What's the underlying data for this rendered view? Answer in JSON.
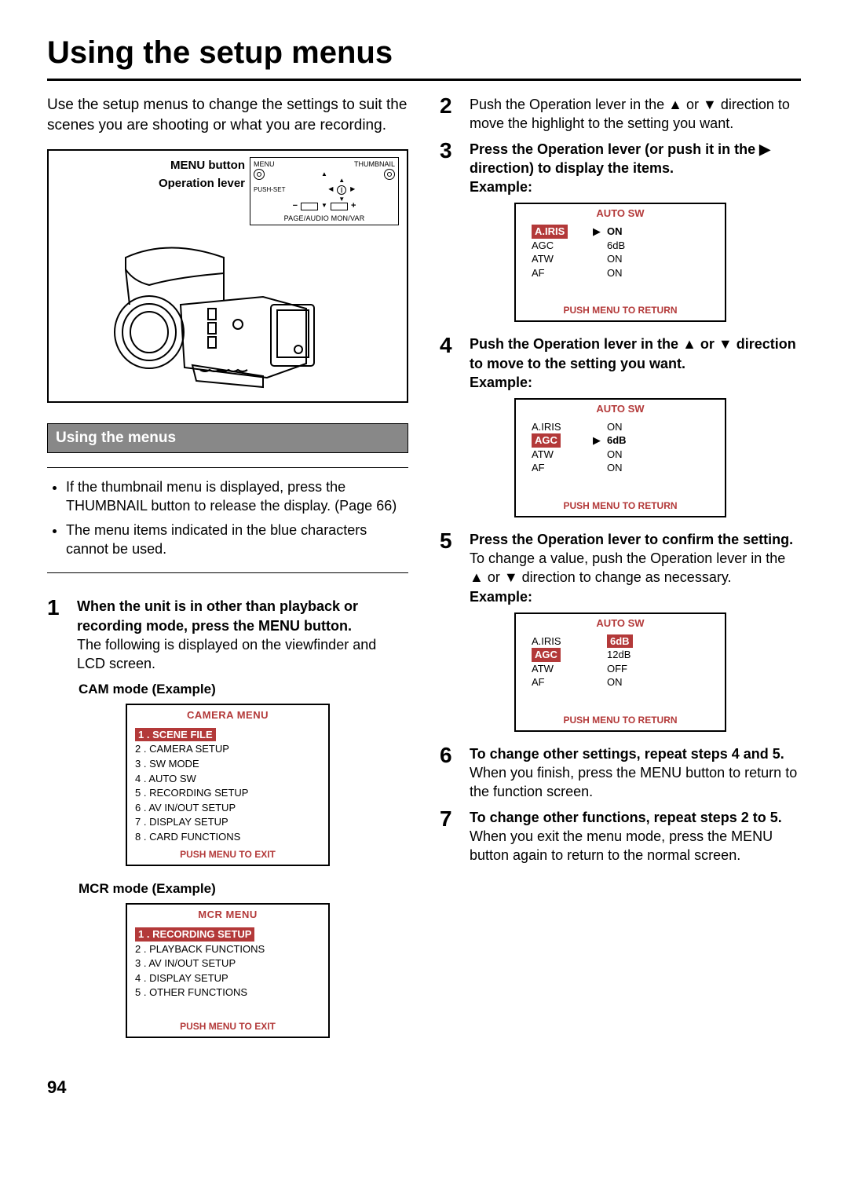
{
  "page": {
    "title": "Using the setup menus",
    "number": "94"
  },
  "intro": "Use the setup menus to change the settings to suit the scenes you are shooting or what you are recording.",
  "diagram": {
    "label_menu_button": "MENU button",
    "label_operation_lever": "Operation lever",
    "top_labels": {
      "menu": "MENU",
      "thumbnail": "THUMBNAIL",
      "pushset": "PUSH-SET",
      "minus": "−",
      "plus": "+"
    },
    "bottom_caption": "PAGE/AUDIO MON/VAR"
  },
  "section_bar": "Using the menus",
  "bullets": [
    "If the thumbnail menu is displayed, press the THUMBNAIL button to release the display. (Page 66)",
    "The menu items indicated in the blue characters cannot be used."
  ],
  "steps_left": {
    "s1": {
      "num": "1",
      "bold": "When the unit is in other than playback or recording mode, press the MENU button.",
      "rest": "The following is displayed on the viewfinder and LCD screen."
    },
    "cam_label": "CAM mode (Example)",
    "mcr_label": "MCR mode (Example)"
  },
  "camera_menu": {
    "title": "CAMERA MENU",
    "selected": "1 . SCENE FILE",
    "items": [
      "2 . CAMERA SETUP",
      "3 . SW MODE",
      "4 . AUTO SW",
      "5 . RECORDING SETUP",
      "6 . AV IN/OUT SETUP",
      "7 . DISPLAY SETUP",
      "8 . CARD FUNCTIONS"
    ],
    "footer": "PUSH MENU TO EXIT"
  },
  "mcr_menu": {
    "title": "MCR MENU",
    "selected": "1 . RECORDING SETUP",
    "items": [
      "2 . PLAYBACK FUNCTIONS",
      "3 . AV IN/OUT SETUP",
      "4 . DISPLAY SETUP",
      "5 . OTHER FUNCTIONS"
    ],
    "footer": "PUSH MENU TO EXIT"
  },
  "steps_right": {
    "s2": {
      "num": "2",
      "bold_pre": "Push the Operation lever in the ",
      "bold_mid": " or ",
      "bold_post": " direction to move the highlight to the setting you want."
    },
    "s3": {
      "num": "3",
      "bold_pre": "Press the Operation lever (or push it in the ",
      "bold_post": " direction) to display the items.",
      "example": "Example:"
    },
    "s4": {
      "num": "4",
      "bold_pre": "Push the Operation lever in the ",
      "bold_mid": " or ",
      "bold_post": " direction to move to the setting you want.",
      "example": "Example:"
    },
    "s5": {
      "num": "5",
      "bold": "Press the Operation lever to confirm the setting.",
      "rest_pre": "To change a value, push the Operation lever in the ",
      "rest_mid": " or ",
      "rest_post": " direction to change as necessary.",
      "example": "Example:"
    },
    "s6": {
      "num": "6",
      "bold": "To change other settings, repeat steps 4 and 5.",
      "rest": "When you finish, press the MENU button to return to the function screen."
    },
    "s7": {
      "num": "7",
      "bold": "To change other functions, repeat steps 2 to 5.",
      "rest": "When you exit the menu mode, press the MENU button again to return to the normal screen."
    }
  },
  "auto_sw": {
    "title": "AUTO SW",
    "footer": "PUSH  MENU TO  RETURN",
    "box3": {
      "rows": [
        {
          "label": "A.IRIS",
          "ptr": "▶",
          "val": "ON",
          "label_hl": true,
          "val_hl": false,
          "val_bold": true
        },
        {
          "label": "AGC",
          "ptr": "",
          "val": "6dB"
        },
        {
          "label": "ATW",
          "ptr": "",
          "val": "ON"
        },
        {
          "label": "AF",
          "ptr": "",
          "val": "ON"
        }
      ]
    },
    "box4": {
      "rows": [
        {
          "label": "A.IRIS",
          "ptr": "",
          "val": "ON"
        },
        {
          "label": "AGC",
          "ptr": "▶",
          "val": "6dB",
          "label_hl": true,
          "val_bold": true
        },
        {
          "label": "ATW",
          "ptr": "",
          "val": "ON"
        },
        {
          "label": "AF",
          "ptr": "",
          "val": "ON"
        }
      ]
    },
    "box5": {
      "rows": [
        {
          "label": "A.IRIS",
          "ptr": "",
          "val": "6dB",
          "val_hl": true
        },
        {
          "label": "AGC",
          "ptr": "",
          "val": "12dB",
          "label_hl": true
        },
        {
          "label": "ATW",
          "ptr": "",
          "val": "OFF"
        },
        {
          "label": "AF",
          "ptr": "",
          "val": "ON"
        }
      ]
    }
  },
  "colors": {
    "accent": "#b33939",
    "section_bar_bg": "#888888",
    "section_bar_fg": "#ffffff",
    "border": "#000000",
    "background": "#ffffff",
    "text": "#000000"
  }
}
